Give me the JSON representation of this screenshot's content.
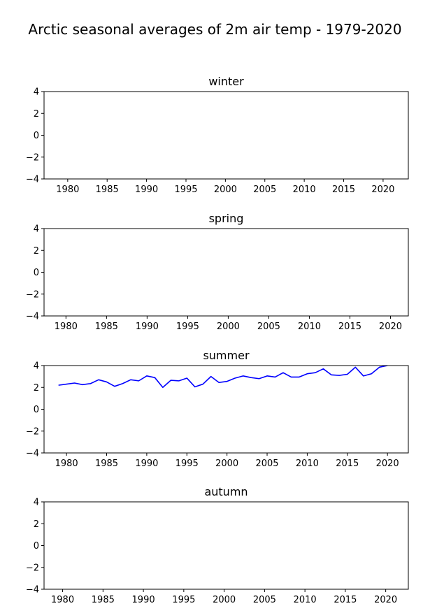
{
  "figure": {
    "title": "Arctic seasonal averages of 2m air temp - 1979-2020"
  },
  "chart_data": [
    {
      "type": "line",
      "title": "winter",
      "xlabel": "",
      "ylabel": "",
      "xlim": [
        1976.9,
        1981.0
      ],
      "xlim_note": "",
      "xticks": [
        1980,
        1985,
        1990,
        1995,
        2000,
        2005,
        2010,
        2015,
        2020
      ],
      "ylim": [
        -4,
        4
      ],
      "yticks": [
        -4,
        -2,
        0,
        2,
        4
      ],
      "ytick_labels": [
        "−4",
        "−2",
        "0",
        "2",
        "4"
      ],
      "grid": false,
      "series": []
    },
    {
      "type": "line",
      "title": "spring",
      "xlabel": "",
      "ylabel": "",
      "xticks": [
        1980,
        1985,
        1990,
        1995,
        2000,
        2005,
        2010,
        2015,
        2020
      ],
      "ylim": [
        -4,
        4
      ],
      "yticks": [
        -4,
        -2,
        0,
        2,
        4
      ],
      "ytick_labels": [
        "−4",
        "−2",
        "0",
        "2",
        "4"
      ],
      "grid": false,
      "series": []
    },
    {
      "type": "line",
      "title": "summer",
      "xlabel": "",
      "ylabel": "",
      "xticks": [
        1980,
        1985,
        1990,
        1995,
        2000,
        2005,
        2010,
        2015,
        2020
      ],
      "ylim": [
        -4,
        4
      ],
      "yticks": [
        -4,
        -2,
        0,
        2,
        4
      ],
      "ytick_labels": [
        "−4",
        "−2",
        "0",
        "2",
        "4"
      ],
      "grid": false,
      "series": [
        {
          "color": "#0000ff",
          "x": [
            1979,
            1980,
            1981,
            1982,
            1983,
            1984,
            1985,
            1986,
            1987,
            1988,
            1989,
            1990,
            1991,
            1992,
            1993,
            1994,
            1995,
            1996,
            1997,
            1998,
            1999,
            2000,
            2001,
            2002,
            2003,
            2004,
            2005,
            2006,
            2007,
            2008,
            2009,
            2010,
            2011,
            2012,
            2013,
            2014,
            2015,
            2016,
            2017,
            2018,
            2019,
            2020
          ],
          "y": [
            2.2,
            2.3,
            2.4,
            2.25,
            2.35,
            2.7,
            2.5,
            2.1,
            2.35,
            2.7,
            2.6,
            3.05,
            2.9,
            2.0,
            2.65,
            2.6,
            2.85,
            2.05,
            2.3,
            3.0,
            2.45,
            2.55,
            2.85,
            3.05,
            2.9,
            2.8,
            3.05,
            2.95,
            3.35,
            2.95,
            2.95,
            3.25,
            3.35,
            3.7,
            3.15,
            3.1,
            3.2,
            3.85,
            3.05,
            3.25,
            3.85,
            4.0
          ]
        }
      ]
    },
    {
      "type": "line",
      "title": "autumn",
      "xlabel": "",
      "ylabel": "",
      "xticks": [
        1980,
        1985,
        1990,
        1995,
        2000,
        2005,
        2010,
        2015,
        2020
      ],
      "ylim": [
        -4,
        4
      ],
      "yticks": [
        -4,
        -2,
        0,
        2,
        4
      ],
      "ytick_labels": [
        "−4",
        "−2",
        "0",
        "2",
        "4"
      ],
      "grid": false,
      "series": []
    }
  ]
}
